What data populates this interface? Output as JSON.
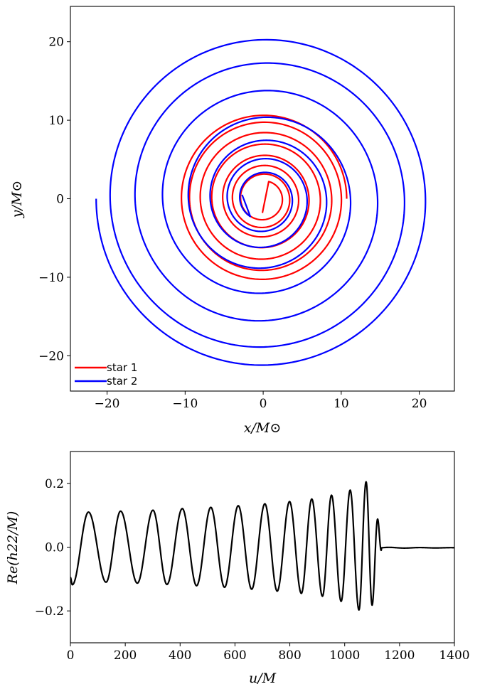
{
  "chart_data": [
    {
      "type": "line",
      "kind": "orbit-trajectories",
      "xlabel": "x/M⊙",
      "ylabel": "y/M⊙",
      "xlim": [
        -24.7,
        24.5
      ],
      "ylim": [
        -24.5,
        24.5
      ],
      "xticks": [
        -20,
        -10,
        0,
        10,
        20
      ],
      "yticks": [
        -20,
        -10,
        0,
        10,
        20
      ],
      "xtick_labels": [
        "−20",
        "−10",
        "0",
        "10",
        "20"
      ],
      "ytick_labels": [
        "−20",
        "−10",
        "0",
        "10",
        "20"
      ],
      "grid": false,
      "legend": {
        "position": "bottom-left",
        "entries": [
          "star 1",
          "star 2"
        ]
      },
      "series": [
        {
          "name": "star 1",
          "color": "#ff0000",
          "r_start": 10.7,
          "r_end_spiral": 2.3,
          "turns": 7.2,
          "angle_start_deg": 0,
          "end_point": [
            -0.1,
            -1.8
          ]
        },
        {
          "name": "star 2",
          "color": "#0000ff",
          "r_start": 21.4,
          "r_end_spiral": 2.8,
          "turns": 7.15,
          "angle_start_deg": 180,
          "end_point": [
            -2.7,
            0.5
          ]
        }
      ]
    },
    {
      "type": "line",
      "kind": "waveform",
      "xlabel": "u/M",
      "ylabel": "Re(h22/M)",
      "xlim": [
        0,
        1400
      ],
      "ylim": [
        -0.3,
        0.3
      ],
      "xticks": [
        0,
        200,
        400,
        600,
        800,
        1000,
        1200,
        1400
      ],
      "yticks": [
        -0.2,
        0.0,
        0.2
      ],
      "xtick_labels": [
        "0",
        "200",
        "400",
        "600",
        "800",
        "1000",
        "1200",
        "1400"
      ],
      "ytick_labels": [
        "−0.2",
        "0.0",
        "0.2"
      ],
      "grid": false,
      "series": [
        {
          "name": "",
          "color": "#000000",
          "peaks": [
            [
              66,
              0.11
            ],
            [
              183,
              0.113
            ],
            [
              301,
              0.116
            ],
            [
              408,
              0.121
            ],
            [
              512,
              0.125
            ],
            [
              612,
              0.13
            ],
            [
              709,
              0.136
            ],
            [
              799,
              0.143
            ],
            [
              880,
              0.151
            ],
            [
              952,
              0.163
            ],
            [
              1020,
              0.179
            ],
            [
              1078,
              0.205
            ],
            [
              1120,
              0.088
            ]
          ],
          "troughs": [
            [
              7,
              -0.118
            ],
            [
              130,
              -0.11
            ],
            [
              244,
              -0.113
            ],
            [
              352,
              -0.117
            ],
            [
              460,
              -0.121
            ],
            [
              562,
              -0.126
            ],
            [
              661,
              -0.132
            ],
            [
              754,
              -0.138
            ],
            [
              842,
              -0.145
            ],
            [
              919,
              -0.154
            ],
            [
              987,
              -0.17
            ],
            [
              1052,
              -0.197
            ],
            [
              1100,
              -0.182
            ],
            [
              1133,
              -0.01
            ]
          ],
          "ringdown": {
            "start": 1135,
            "value": -0.002,
            "end": 1400
          }
        }
      ]
    }
  ]
}
